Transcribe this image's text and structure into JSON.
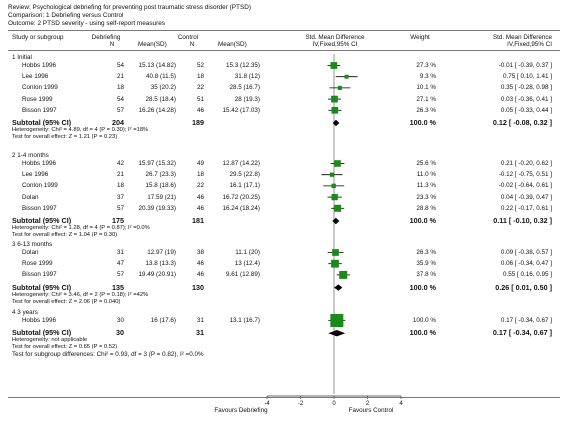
{
  "review": {
    "review_line": "Review:  Psychological debriefing for preventing post traumatic stress disorder (PTSD)",
    "comparison_line": "Comparison:  1 Debriefing versus Control",
    "outcome_line": "Outcome:  2 PTSD severity - using self-report measures"
  },
  "columns": {
    "study": "Study or subgroup",
    "debriefing_group": "Debriefing",
    "n": "N",
    "mean_sd": "Mean(SD)",
    "control_group": "Control",
    "smd_title": "Std. Mean Difference",
    "smd_method": "IV,Fixed,95% CI",
    "weight": "Weight",
    "smd_title_right": "Std. Mean Difference",
    "smd_method_right": "IV,Fixed,95% CI"
  },
  "subgroups": [
    {
      "title": "1 Initial",
      "studies": [
        {
          "name": "Hobbs 1996",
          "n1": "54",
          "ms1": "15.13 (14.82)",
          "n2": "52",
          "ms2": "15.3 (12.35)",
          "weight": "27.3 %",
          "ci": "-0.01 [ -0.39, 0.37 ]"
        },
        {
          "name": "Lee 1996",
          "n1": "21",
          "ms1": "40.8 (11.5)",
          "n2": "18",
          "ms2": "31.8 (12)",
          "weight": "9.3 %",
          "ci": "0.75 [ 0.10, 1.41 ]"
        },
        {
          "name": "Conlon 1999",
          "n1": "18",
          "ms1": "35 (20.2)",
          "n2": "22",
          "ms2": "28.5 (16.7)",
          "weight": "10.1 %",
          "ci": "0.35 [ -0.28, 0.98 ]"
        },
        {
          "name": "Rose 1999",
          "n1": "54",
          "ms1": "28.5 (18.4)",
          "n2": "51",
          "ms2": "28 (19.3)",
          "weight": "27.1 %",
          "ci": "0.03 [ -0.36, 0.41 ]"
        },
        {
          "name": "Bisson 1997",
          "n1": "57",
          "ms1": "16.26 (14.28)",
          "n2": "46",
          "ms2": "15.42 (17.03)",
          "weight": "26.3 %",
          "ci": "0.05 [ -0.33, 0.44 ]"
        }
      ],
      "subtotal": {
        "label": "Subtotal (95% CI)",
        "n1": "204",
        "n2": "189",
        "weight": "100.0 %",
        "ci": "0.12 [ -0.08, 0.32 ]"
      },
      "heterogeneity": "Heterogeneity: Chi² = 4.89, df = 4 (P = 0.30); I² =18%",
      "overall": "Test for overall effect: Z = 1.21 (P = 0.23)"
    },
    {
      "title": "2 1-4 months",
      "studies": [
        {
          "name": "Hobbs 1996",
          "n1": "42",
          "ms1": "15.97 (15.32)",
          "n2": "49",
          "ms2": "12.87 (14.22)",
          "weight": "25.6 %",
          "ci": "0.21 [ -0.20, 0.62 ]"
        },
        {
          "name": "Lee 1996",
          "n1": "21",
          "ms1": "26.7 (23.3)",
          "n2": "18",
          "ms2": "29.5 (22.8)",
          "weight": "11.0 %",
          "ci": "-0.12 [ -0.75, 0.51 ]"
        },
        {
          "name": "Conlon 1999",
          "n1": "18",
          "ms1": "15.8 (18.6)",
          "n2": "22",
          "ms2": "16.1 (17.1)",
          "weight": "11.3 %",
          "ci": "-0.02 [ -0.64, 0.61 ]"
        },
        {
          "name": "Dolan",
          "n1": "37",
          "ms1": "17.59 (21)",
          "n2": "46",
          "ms2": "16.72 (20.25)",
          "weight": "23.3 %",
          "ci": "0.04 [ -0.39, 0.47 ]"
        },
        {
          "name": "Bisson 1997",
          "n1": "57",
          "ms1": "20.39 (19.33)",
          "n2": "46",
          "ms2": "16.24 (18.24)",
          "weight": "28.8 %",
          "ci": "0.22 [ -0.17, 0.61 ]"
        }
      ],
      "subtotal": {
        "label": "Subtotal (95% CI)",
        "n1": "175",
        "n2": "181",
        "weight": "100.0 %",
        "ci": "0.11 [ -0.10, 0.32 ]"
      },
      "heterogeneity": "Heterogeneity: Chi² = 1.28, df = 4 (P = 0.87); I² =0.0%",
      "overall": "Test for overall effect: Z = 1.04 (P = 0.30)"
    },
    {
      "title": "3 6-13 months",
      "studies": [
        {
          "name": "Dolan",
          "n1": "31",
          "ms1": "12.97 (19)",
          "n2": "38",
          "ms2": "11.1 (20)",
          "weight": "26.3 %",
          "ci": "0.09 [ -0.38, 0.57 ]"
        },
        {
          "name": "Rose 1999",
          "n1": "47",
          "ms1": "13.8 (13.3)",
          "n2": "46",
          "ms2": "13 (12.4)",
          "weight": "35.9 %",
          "ci": "0.06 [ -0.34, 0.47 ]"
        },
        {
          "name": "Bisson 1997",
          "n1": "57",
          "ms1": "19.49 (20.91)",
          "n2": "46",
          "ms2": "9.61 (12.89)",
          "weight": "37.8 %",
          "ci": "0.55 [ 0.16, 0.95 ]"
        }
      ],
      "subtotal": {
        "label": "Subtotal (95% CI)",
        "n1": "135",
        "n2": "130",
        "weight": "100.0 %",
        "ci": "0.26 [ 0.01, 0.50 ]"
      },
      "heterogeneity": "Heterogeneity: Chi² = 3.46, df = 2 (P = 0.18); I² =42%",
      "overall": "Test for overall effect: Z = 2.06 (P = 0.040)"
    },
    {
      "title": "4 3 years",
      "studies": [
        {
          "name": "Hobbs 1996",
          "n1": "30",
          "ms1": "16 (17.6)",
          "n2": "31",
          "ms2": "13.1 (16.7)",
          "weight": "100.0 %",
          "ci": "0.17 [ -0.34, 0.67 ]"
        }
      ],
      "subtotal": {
        "label": "Subtotal (95% CI)",
        "n1": "30",
        "n2": "31",
        "weight": "100.0 %",
        "ci": "0.17 [ -0.34, 0.67 ]"
      },
      "heterogeneity": "Heterogeneity: not applicable",
      "overall": "Test for overall effect: Z = 0.65 (P = 0.52)"
    }
  ],
  "footer": {
    "subgroup_test": "Test for subgroup differences: Chi² = 0.93, df = 3 (P = 0.82), I² =0.0%",
    "favours_left": "Favours Debriefing",
    "favours_right": "Favours Control"
  },
  "colors": {
    "study_marker": "#1a8a1a",
    "summary_diamond": "#000000",
    "rule": "#7a7a7a"
  },
  "chart_data": {
    "type": "forest",
    "x_axis": {
      "range": [
        -4,
        4
      ],
      "ticks": [
        -4,
        -2,
        0,
        2,
        4
      ]
    },
    "groups": [
      {
        "title": "1 Initial",
        "studies": [
          {
            "name": "Hobbs 1996",
            "est": -0.01,
            "lo": -0.39,
            "hi": 0.37,
            "w": 27.3
          },
          {
            "name": "Lee 1996",
            "est": 0.75,
            "lo": 0.1,
            "hi": 1.41,
            "w": 9.3
          },
          {
            "name": "Conlon 1999",
            "est": 0.35,
            "lo": -0.28,
            "hi": 0.98,
            "w": 10.1
          },
          {
            "name": "Rose 1999",
            "est": 0.03,
            "lo": -0.36,
            "hi": 0.41,
            "w": 27.1
          },
          {
            "name": "Bisson 1997",
            "est": 0.05,
            "lo": -0.33,
            "hi": 0.44,
            "w": 26.3
          }
        ],
        "subtotal": {
          "est": 0.12,
          "lo": -0.08,
          "hi": 0.32
        }
      },
      {
        "title": "2 1-4 months",
        "studies": [
          {
            "name": "Hobbs 1996",
            "est": 0.21,
            "lo": -0.2,
            "hi": 0.62,
            "w": 25.6
          },
          {
            "name": "Lee 1996",
            "est": -0.12,
            "lo": -0.75,
            "hi": 0.51,
            "w": 11.0
          },
          {
            "name": "Conlon 1999",
            "est": -0.02,
            "lo": -0.64,
            "hi": 0.61,
            "w": 11.3
          },
          {
            "name": "Dolan",
            "est": 0.04,
            "lo": -0.39,
            "hi": 0.47,
            "w": 23.3
          },
          {
            "name": "Bisson 1997",
            "est": 0.22,
            "lo": -0.17,
            "hi": 0.61,
            "w": 28.8
          }
        ],
        "subtotal": {
          "est": 0.11,
          "lo": -0.1,
          "hi": 0.32
        }
      },
      {
        "title": "3 6-13 months",
        "studies": [
          {
            "name": "Dolan",
            "est": 0.09,
            "lo": -0.38,
            "hi": 0.57,
            "w": 26.3
          },
          {
            "name": "Rose 1999",
            "est": 0.06,
            "lo": -0.34,
            "hi": 0.47,
            "w": 35.9
          },
          {
            "name": "Bisson 1997",
            "est": 0.55,
            "lo": 0.16,
            "hi": 0.95,
            "w": 37.8
          }
        ],
        "subtotal": {
          "est": 0.26,
          "lo": 0.01,
          "hi": 0.5
        }
      },
      {
        "title": "4 3 years",
        "studies": [
          {
            "name": "Hobbs 1996",
            "est": 0.17,
            "lo": -0.34,
            "hi": 0.67,
            "w": 100.0
          }
        ],
        "subtotal": {
          "est": 0.17,
          "lo": -0.34,
          "hi": 0.67
        }
      }
    ]
  }
}
